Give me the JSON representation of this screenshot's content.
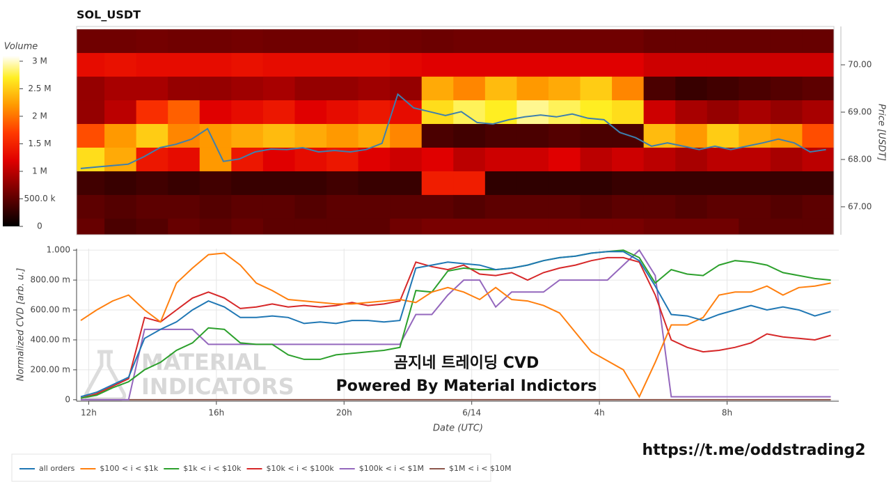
{
  "chart_data": [
    {
      "type": "heatmap",
      "title": "SOL_USDT",
      "xlim": [
        11.62,
        35.5
      ],
      "x": [
        12,
        13,
        14,
        15,
        16,
        17,
        18,
        19,
        20,
        21,
        22,
        23,
        24,
        25,
        26,
        27,
        28,
        29,
        30,
        31,
        32,
        33,
        34,
        35
      ],
      "y": [
        70.5,
        70.0,
        69.5,
        69.0,
        68.5,
        68.0,
        67.5,
        67.0,
        66.5
      ],
      "z": [
        [
          0.6,
          0.6,
          0.62,
          0.6,
          0.6,
          0.62,
          0.6,
          0.6,
          0.6,
          0.62,
          0.6,
          0.58,
          0.6,
          0.6,
          0.6,
          0.6,
          0.6,
          0.6,
          0.55,
          0.55,
          0.55,
          0.55,
          0.55,
          0.55
        ],
        [
          1.3,
          1.35,
          1.3,
          1.3,
          1.3,
          1.35,
          1.3,
          1.3,
          1.3,
          1.3,
          1.25,
          1.2,
          1.2,
          1.2,
          1.2,
          1.2,
          1.2,
          1.2,
          1.1,
          1.1,
          1.1,
          1.1,
          1.1,
          1.1
        ],
        [
          0.8,
          0.9,
          0.9,
          0.8,
          0.8,
          0.85,
          0.9,
          0.8,
          0.8,
          0.85,
          0.8,
          2.3,
          2.1,
          2.4,
          2.2,
          2.3,
          2.5,
          2.1,
          0.4,
          0.3,
          0.35,
          0.4,
          0.45,
          0.5
        ],
        [
          0.8,
          1.0,
          1.6,
          1.9,
          1.2,
          1.3,
          1.4,
          1.2,
          1.3,
          1.4,
          1.3,
          2.6,
          2.8,
          2.7,
          2.9,
          2.8,
          2.7,
          2.6,
          1.1,
          0.9,
          0.8,
          0.9,
          0.8,
          0.9
        ],
        [
          1.8,
          2.2,
          2.5,
          2.1,
          2.2,
          2.3,
          2.4,
          2.3,
          2.2,
          2.3,
          2.1,
          0.4,
          0.35,
          0.4,
          0.4,
          0.45,
          0.4,
          0.4,
          2.4,
          2.2,
          2.5,
          2.3,
          2.2,
          1.8
        ],
        [
          2.6,
          2.3,
          1.4,
          1.3,
          2.2,
          1.4,
          1.2,
          1.3,
          1.4,
          1.2,
          1.1,
          1.2,
          1.0,
          1.1,
          1.1,
          1.2,
          1.0,
          1.1,
          1.0,
          0.9,
          1.0,
          1.0,
          0.9,
          1.0
        ],
        [
          0.35,
          0.3,
          0.35,
          0.3,
          0.35,
          0.3,
          0.3,
          0.3,
          0.35,
          0.3,
          0.3,
          1.45,
          1.45,
          0.25,
          0.25,
          0.25,
          0.25,
          0.3,
          0.3,
          0.3,
          0.3,
          0.3,
          0.3,
          0.3
        ],
        [
          0.5,
          0.45,
          0.5,
          0.5,
          0.45,
          0.5,
          0.5,
          0.45,
          0.5,
          0.5,
          0.5,
          0.5,
          0.45,
          0.5,
          0.5,
          0.5,
          0.45,
          0.5,
          0.5,
          0.45,
          0.5,
          0.5,
          0.45,
          0.5
        ],
        [
          0.55,
          0.4,
          0.45,
          0.55,
          0.5,
          0.55,
          0.5,
          0.5,
          0.5,
          0.5,
          0.6,
          0.65,
          0.65,
          0.65,
          0.65,
          0.65,
          0.65,
          0.65,
          0.6,
          0.6,
          0.6,
          0.5,
          0.5,
          0.5
        ]
      ],
      "colorscale": [
        [
          0,
          "#000000"
        ],
        [
          0.6,
          "#700000"
        ],
        [
          1.2,
          "#e00000"
        ],
        [
          1.7,
          "#ff3a00"
        ],
        [
          2.2,
          "#ff9900"
        ],
        [
          2.7,
          "#ffee22"
        ],
        [
          3.1,
          "#ffffff"
        ]
      ],
      "colorbar": {
        "label": "Volume",
        "lim": [
          0,
          3.1
        ],
        "ticks": [
          0,
          {
            "value": 0.5,
            "label": "500.0 k"
          },
          {
            "value": 1,
            "label": "1 M"
          },
          {
            "value": 1.5,
            "label": "1.5 M"
          },
          {
            "value": 2,
            "label": "2 M"
          },
          {
            "value": 2.5,
            "label": "2.5 M"
          },
          {
            "value": 3,
            "label": "3 M"
          }
        ]
      },
      "ylabel": "Price [USDT]",
      "ylim": [
        66.41,
        70.81
      ],
      "yticks": [
        {
          "value": 67,
          "label": "67.00"
        },
        {
          "value": 68,
          "label": "68.00"
        },
        {
          "value": 69,
          "label": "69.00"
        },
        {
          "value": 70,
          "label": "70.00"
        }
      ],
      "line": {
        "color": "#3d7fae",
        "x": [
          11.75,
          12.25,
          12.75,
          13.25,
          13.75,
          14.25,
          14.75,
          15.25,
          15.75,
          16.25,
          16.75,
          17.25,
          17.75,
          18.25,
          18.75,
          19.25,
          19.75,
          20.25,
          20.75,
          21.25,
          21.75,
          22.25,
          22.75,
          23.25,
          23.75,
          24.25,
          24.75,
          25.25,
          25.75,
          26.25,
          26.75,
          27.25,
          27.75,
          28.25,
          28.75,
          29.25,
          29.75,
          30.25,
          30.75,
          31.25,
          31.75,
          32.25,
          32.75,
          33.25,
          33.75,
          34.25,
          34.75,
          35.25
        ],
        "values": [
          67.81,
          67.84,
          67.87,
          67.9,
          68.06,
          68.25,
          68.32,
          68.43,
          68.65,
          67.96,
          68.01,
          68.16,
          68.22,
          68.21,
          68.25,
          68.16,
          68.19,
          68.16,
          68.21,
          68.34,
          69.38,
          69.09,
          69.01,
          68.93,
          69.01,
          68.78,
          68.75,
          68.84,
          68.9,
          68.94,
          68.9,
          68.96,
          68.87,
          68.84,
          68.57,
          68.46,
          68.28,
          68.35,
          68.28,
          68.21,
          68.28,
          68.21,
          68.28,
          68.35,
          68.43,
          68.35,
          68.16,
          68.21
        ]
      }
    },
    {
      "type": "line",
      "xlabel": "Date (UTC)",
      "ylabel": "Normalized CVD [arb. u.]",
      "xlim": [
        11.62,
        35.5
      ],
      "xticks": [
        {
          "value": 12,
          "label": "12h"
        },
        {
          "value": 16,
          "label": "16h"
        },
        {
          "value": 20,
          "label": "20h"
        },
        {
          "value": 24,
          "label": "6/14"
        },
        {
          "value": 28,
          "label": "4h"
        },
        {
          "value": 32,
          "label": "8h"
        }
      ],
      "ylim": [
        -0.01,
        1.01
      ],
      "yticks": [
        0,
        {
          "value": 0.2,
          "label": "200.00 m"
        },
        {
          "value": 0.4,
          "label": "400.00 m"
        },
        {
          "value": 0.6,
          "label": "600.00 m"
        },
        {
          "value": 0.8,
          "label": "800.00 m"
        },
        {
          "value": 1,
          "label": "1.000"
        }
      ],
      "grid": true,
      "legend": "bottom",
      "x": [
        11.75,
        12.25,
        12.75,
        13.25,
        13.75,
        14.25,
        14.75,
        15.25,
        15.75,
        16.25,
        16.75,
        17.25,
        17.75,
        18.25,
        18.75,
        19.25,
        19.75,
        20.25,
        20.75,
        21.25,
        21.75,
        22.25,
        22.75,
        23.25,
        23.75,
        24.25,
        24.75,
        25.25,
        25.75,
        26.25,
        26.75,
        27.25,
        27.75,
        28.25,
        28.75,
        29.25,
        29.75,
        30.25,
        30.75,
        31.25,
        31.75,
        32.25,
        32.75,
        33.25,
        33.75,
        34.25,
        34.75,
        35.25
      ],
      "series": [
        {
          "name": "all orders",
          "color": "#1f77b4",
          "values": [
            0.02,
            0.05,
            0.1,
            0.15,
            0.41,
            0.47,
            0.52,
            0.6,
            0.66,
            0.62,
            0.55,
            0.55,
            0.56,
            0.55,
            0.51,
            0.52,
            0.51,
            0.53,
            0.53,
            0.52,
            0.53,
            0.88,
            0.9,
            0.92,
            0.91,
            0.9,
            0.87,
            0.88,
            0.9,
            0.93,
            0.95,
            0.96,
            0.98,
            0.99,
            0.99,
            0.93,
            0.76,
            0.57,
            0.56,
            0.53,
            0.57,
            0.6,
            0.63,
            0.6,
            0.62,
            0.6,
            0.56,
            0.59
          ]
        },
        {
          "name": "$100 < i < $1k",
          "color": "#ff7f0e",
          "values": [
            0.53,
            0.6,
            0.66,
            0.7,
            0.6,
            0.52,
            0.78,
            0.88,
            0.97,
            0.98,
            0.9,
            0.78,
            0.73,
            0.67,
            0.66,
            0.65,
            0.64,
            0.64,
            0.65,
            0.66,
            0.67,
            0.65,
            0.72,
            0.75,
            0.72,
            0.67,
            0.75,
            0.67,
            0.66,
            0.63,
            0.58,
            0.45,
            0.32,
            0.26,
            0.2,
            0.02,
            0.25,
            0.5,
            0.5,
            0.55,
            0.7,
            0.72,
            0.72,
            0.76,
            0.7,
            0.75,
            0.76,
            0.78
          ]
        },
        {
          "name": "$1k < i < $10k",
          "color": "#2ca02c",
          "values": [
            0.01,
            0.03,
            0.08,
            0.12,
            0.2,
            0.25,
            0.33,
            0.38,
            0.48,
            0.47,
            0.38,
            0.37,
            0.37,
            0.3,
            0.27,
            0.27,
            0.3,
            0.31,
            0.32,
            0.33,
            0.35,
            0.73,
            0.72,
            0.86,
            0.88,
            0.87,
            0.87,
            0.88,
            0.9,
            0.93,
            0.95,
            0.96,
            0.98,
            0.99,
            1.0,
            0.95,
            0.78,
            0.87,
            0.84,
            0.83,
            0.9,
            0.93,
            0.92,
            0.9,
            0.85,
            0.83,
            0.81,
            0.8
          ]
        },
        {
          "name": "$10k < i < $100k",
          "color": "#d62728",
          "values": [
            0.01,
            0.04,
            0.09,
            0.14,
            0.55,
            0.52,
            0.6,
            0.68,
            0.72,
            0.68,
            0.61,
            0.62,
            0.64,
            0.62,
            0.63,
            0.62,
            0.63,
            0.65,
            0.63,
            0.64,
            0.66,
            0.92,
            0.89,
            0.87,
            0.9,
            0.84,
            0.83,
            0.85,
            0.8,
            0.85,
            0.88,
            0.9,
            0.93,
            0.95,
            0.95,
            0.92,
            0.7,
            0.4,
            0.35,
            0.32,
            0.33,
            0.35,
            0.38,
            0.44,
            0.42,
            0.41,
            0.4,
            0.43
          ]
        },
        {
          "name": "$100k < i < $1M",
          "color": "#9467bd",
          "values": [
            0,
            0,
            0,
            0,
            0.47,
            0.47,
            0.47,
            0.47,
            0.37,
            0.37,
            0.37,
            0.37,
            0.37,
            0.37,
            0.37,
            0.37,
            0.37,
            0.37,
            0.37,
            0.37,
            0.37,
            0.57,
            0.57,
            0.7,
            0.8,
            0.8,
            0.62,
            0.72,
            0.72,
            0.72,
            0.8,
            0.8,
            0.8,
            0.8,
            0.9,
            1.0,
            0.83,
            0.02,
            0.02,
            0.02,
            0.02,
            0.02,
            0.02,
            0.02,
            0.02,
            0.02,
            0.02,
            0.02
          ]
        },
        {
          "name": "$1M < i < $10M",
          "color": "#8c564b",
          "values": [
            0,
            0,
            0,
            0,
            0,
            0,
            0,
            0,
            0,
            0,
            0,
            0,
            0,
            0,
            0,
            0,
            0,
            0,
            0,
            0,
            0,
            0,
            0,
            0,
            0,
            0,
            0,
            0,
            0,
            0,
            0,
            0,
            0,
            0,
            0,
            0,
            0,
            0,
            0,
            0,
            0,
            0,
            0,
            0,
            0,
            0,
            0,
            0
          ]
        }
      ],
      "annotations": [
        "곰지네 트레이딩 CVD",
        "Powered By Material Indictors"
      ],
      "watermark": [
        "MATERIAL",
        "INDICATORS"
      ]
    }
  ],
  "footer": {
    "url": "https://t.me/oddstrading2"
  }
}
